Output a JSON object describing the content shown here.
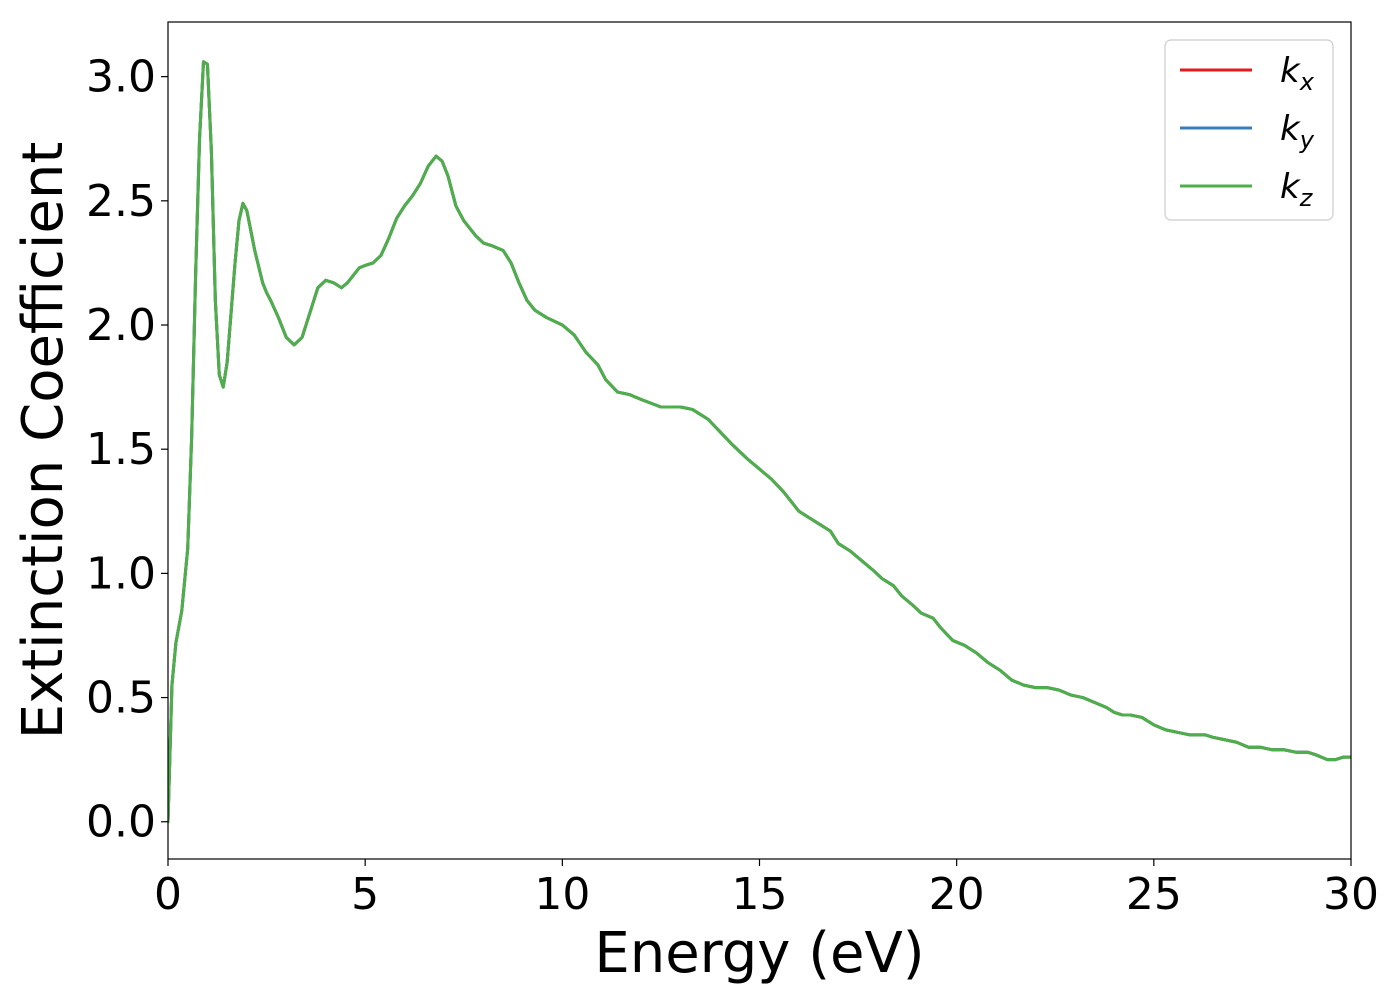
{
  "chart_data": {
    "type": "line",
    "title": "",
    "xlabel": "Energy (eV)",
    "ylabel": "Extinction Coefficient",
    "xlim": [
      0,
      30
    ],
    "ylim": [
      -0.15,
      3.22
    ],
    "xticks": [
      0,
      5,
      10,
      15,
      20,
      25,
      30
    ],
    "xtick_labels": [
      "0",
      "5",
      "10",
      "15",
      "20",
      "25",
      "30"
    ],
    "yticks": [
      0.0,
      0.5,
      1.0,
      1.5,
      2.0,
      2.5,
      3.0
    ],
    "ytick_labels": [
      "0.0",
      "0.5",
      "1.0",
      "1.5",
      "2.0",
      "2.5",
      "3.0"
    ],
    "grid": false,
    "legend_position": "top-right",
    "series": [
      {
        "name": "k_x",
        "legend_base": "k",
        "legend_sub": "x",
        "color": "#e41a1c",
        "x": [
          0,
          0.1,
          0.2,
          0.35,
          0.5,
          0.6,
          0.7,
          0.8,
          0.9,
          1.0,
          1.1,
          1.2,
          1.3,
          1.4,
          1.5,
          1.6,
          1.7,
          1.8,
          1.9,
          2.0,
          2.2,
          2.4,
          2.5,
          2.6,
          2.8,
          3.0,
          3.2,
          3.4,
          3.6,
          3.8,
          4.0,
          4.2,
          4.4,
          4.55,
          4.7,
          4.85,
          5.0,
          5.2,
          5.4,
          5.6,
          5.8,
          6.0,
          6.2,
          6.4,
          6.6,
          6.8,
          6.95,
          7.1,
          7.3,
          7.5,
          7.8,
          8.0,
          8.2,
          8.5,
          8.7,
          8.9,
          9.1,
          9.3,
          9.6,
          10.0,
          10.3,
          10.6,
          10.9,
          11.1,
          11.4,
          11.7,
          12.0,
          12.5,
          13.0,
          13.3,
          13.7,
          14.0,
          14.3,
          14.7,
          15.0,
          15.3,
          15.6,
          15.8,
          16.0,
          16.3,
          16.5,
          16.8,
          17.0,
          17.3,
          17.6,
          17.9,
          18.1,
          18.4,
          18.6,
          18.9,
          19.1,
          19.4,
          19.6,
          19.9,
          20.2,
          20.5,
          20.8,
          21.1,
          21.4,
          21.7,
          22.0,
          22.3,
          22.6,
          22.9,
          23.2,
          23.5,
          23.8,
          24.0,
          24.2,
          24.4,
          24.7,
          25.0,
          25.3,
          25.6,
          25.9,
          26.1,
          26.3,
          26.5,
          26.8,
          27.1,
          27.4,
          27.7,
          28.0,
          28.3,
          28.6,
          28.9,
          29.1,
          29.4,
          29.6,
          29.8,
          30.0
        ],
        "y": [
          0.0,
          0.55,
          0.72,
          0.85,
          1.1,
          1.55,
          2.2,
          2.75,
          3.06,
          3.05,
          2.7,
          2.1,
          1.8,
          1.75,
          1.85,
          2.05,
          2.25,
          2.42,
          2.49,
          2.46,
          2.3,
          2.17,
          2.13,
          2.1,
          2.03,
          1.95,
          1.92,
          1.95,
          2.05,
          2.15,
          2.18,
          2.17,
          2.15,
          2.17,
          2.2,
          2.23,
          2.24,
          2.25,
          2.28,
          2.35,
          2.43,
          2.48,
          2.52,
          2.57,
          2.64,
          2.68,
          2.66,
          2.6,
          2.48,
          2.42,
          2.36,
          2.33,
          2.32,
          2.3,
          2.25,
          2.17,
          2.1,
          2.06,
          2.03,
          2.0,
          1.96,
          1.89,
          1.84,
          1.78,
          1.73,
          1.72,
          1.7,
          1.67,
          1.67,
          1.66,
          1.62,
          1.57,
          1.52,
          1.46,
          1.42,
          1.38,
          1.33,
          1.29,
          1.25,
          1.22,
          1.2,
          1.17,
          1.12,
          1.09,
          1.05,
          1.01,
          0.98,
          0.95,
          0.91,
          0.87,
          0.84,
          0.82,
          0.78,
          0.73,
          0.71,
          0.68,
          0.64,
          0.61,
          0.57,
          0.55,
          0.54,
          0.54,
          0.53,
          0.51,
          0.5,
          0.48,
          0.46,
          0.44,
          0.43,
          0.43,
          0.42,
          0.39,
          0.37,
          0.36,
          0.35,
          0.35,
          0.35,
          0.34,
          0.33,
          0.32,
          0.3,
          0.3,
          0.29,
          0.29,
          0.28,
          0.28,
          0.27,
          0.25,
          0.25,
          0.26,
          0.26
        ]
      },
      {
        "name": "k_y",
        "legend_base": "k",
        "legend_sub": "y",
        "color": "#377eb8",
        "x": [
          0,
          0.1,
          0.2,
          0.35,
          0.5,
          0.6,
          0.7,
          0.8,
          0.9,
          1.0,
          1.1,
          1.2,
          1.3,
          1.4,
          1.5,
          1.6,
          1.7,
          1.8,
          1.9,
          2.0,
          2.2,
          2.4,
          2.5,
          2.6,
          2.8,
          3.0,
          3.2,
          3.4,
          3.6,
          3.8,
          4.0,
          4.2,
          4.4,
          4.55,
          4.7,
          4.85,
          5.0,
          5.2,
          5.4,
          5.6,
          5.8,
          6.0,
          6.2,
          6.4,
          6.6,
          6.8,
          6.95,
          7.1,
          7.3,
          7.5,
          7.8,
          8.0,
          8.2,
          8.5,
          8.7,
          8.9,
          9.1,
          9.3,
          9.6,
          10.0,
          10.3,
          10.6,
          10.9,
          11.1,
          11.4,
          11.7,
          12.0,
          12.5,
          13.0,
          13.3,
          13.7,
          14.0,
          14.3,
          14.7,
          15.0,
          15.3,
          15.6,
          15.8,
          16.0,
          16.3,
          16.5,
          16.8,
          17.0,
          17.3,
          17.6,
          17.9,
          18.1,
          18.4,
          18.6,
          18.9,
          19.1,
          19.4,
          19.6,
          19.9,
          20.2,
          20.5,
          20.8,
          21.1,
          21.4,
          21.7,
          22.0,
          22.3,
          22.6,
          22.9,
          23.2,
          23.5,
          23.8,
          24.0,
          24.2,
          24.4,
          24.7,
          25.0,
          25.3,
          25.6,
          25.9,
          26.1,
          26.3,
          26.5,
          26.8,
          27.1,
          27.4,
          27.7,
          28.0,
          28.3,
          28.6,
          28.9,
          29.1,
          29.4,
          29.6,
          29.8,
          30.0
        ],
        "y": [
          0.0,
          0.55,
          0.72,
          0.85,
          1.1,
          1.55,
          2.2,
          2.75,
          3.06,
          3.05,
          2.7,
          2.1,
          1.8,
          1.75,
          1.85,
          2.05,
          2.25,
          2.42,
          2.49,
          2.46,
          2.3,
          2.17,
          2.13,
          2.1,
          2.03,
          1.95,
          1.92,
          1.95,
          2.05,
          2.15,
          2.18,
          2.17,
          2.15,
          2.17,
          2.2,
          2.23,
          2.24,
          2.25,
          2.28,
          2.35,
          2.43,
          2.48,
          2.52,
          2.57,
          2.64,
          2.68,
          2.66,
          2.6,
          2.48,
          2.42,
          2.36,
          2.33,
          2.32,
          2.3,
          2.25,
          2.17,
          2.1,
          2.06,
          2.03,
          2.0,
          1.96,
          1.89,
          1.84,
          1.78,
          1.73,
          1.72,
          1.7,
          1.67,
          1.67,
          1.66,
          1.62,
          1.57,
          1.52,
          1.46,
          1.42,
          1.38,
          1.33,
          1.29,
          1.25,
          1.22,
          1.2,
          1.17,
          1.12,
          1.09,
          1.05,
          1.01,
          0.98,
          0.95,
          0.91,
          0.87,
          0.84,
          0.82,
          0.78,
          0.73,
          0.71,
          0.68,
          0.64,
          0.61,
          0.57,
          0.55,
          0.54,
          0.54,
          0.53,
          0.51,
          0.5,
          0.48,
          0.46,
          0.44,
          0.43,
          0.43,
          0.42,
          0.39,
          0.37,
          0.36,
          0.35,
          0.35,
          0.35,
          0.34,
          0.33,
          0.32,
          0.3,
          0.3,
          0.29,
          0.29,
          0.28,
          0.28,
          0.27,
          0.25,
          0.25,
          0.26,
          0.26
        ]
      },
      {
        "name": "k_z",
        "legend_base": "k",
        "legend_sub": "z",
        "color": "#4daf4a",
        "x": [
          0,
          0.1,
          0.2,
          0.35,
          0.5,
          0.6,
          0.7,
          0.8,
          0.9,
          1.0,
          1.1,
          1.2,
          1.3,
          1.4,
          1.5,
          1.6,
          1.7,
          1.8,
          1.9,
          2.0,
          2.2,
          2.4,
          2.5,
          2.6,
          2.8,
          3.0,
          3.2,
          3.4,
          3.6,
          3.8,
          4.0,
          4.2,
          4.4,
          4.55,
          4.7,
          4.85,
          5.0,
          5.2,
          5.4,
          5.6,
          5.8,
          6.0,
          6.2,
          6.4,
          6.6,
          6.8,
          6.95,
          7.1,
          7.3,
          7.5,
          7.8,
          8.0,
          8.2,
          8.5,
          8.7,
          8.9,
          9.1,
          9.3,
          9.6,
          10.0,
          10.3,
          10.6,
          10.9,
          11.1,
          11.4,
          11.7,
          12.0,
          12.5,
          13.0,
          13.3,
          13.7,
          14.0,
          14.3,
          14.7,
          15.0,
          15.3,
          15.6,
          15.8,
          16.0,
          16.3,
          16.5,
          16.8,
          17.0,
          17.3,
          17.6,
          17.9,
          18.1,
          18.4,
          18.6,
          18.9,
          19.1,
          19.4,
          19.6,
          19.9,
          20.2,
          20.5,
          20.8,
          21.1,
          21.4,
          21.7,
          22.0,
          22.3,
          22.6,
          22.9,
          23.2,
          23.5,
          23.8,
          24.0,
          24.2,
          24.4,
          24.7,
          25.0,
          25.3,
          25.6,
          25.9,
          26.1,
          26.3,
          26.5,
          26.8,
          27.1,
          27.4,
          27.7,
          28.0,
          28.3,
          28.6,
          28.9,
          29.1,
          29.4,
          29.6,
          29.8,
          30.0
        ],
        "y": [
          0.0,
          0.55,
          0.72,
          0.85,
          1.1,
          1.55,
          2.2,
          2.75,
          3.06,
          3.05,
          2.7,
          2.1,
          1.8,
          1.75,
          1.85,
          2.05,
          2.25,
          2.42,
          2.49,
          2.46,
          2.3,
          2.17,
          2.13,
          2.1,
          2.03,
          1.95,
          1.92,
          1.95,
          2.05,
          2.15,
          2.18,
          2.17,
          2.15,
          2.17,
          2.2,
          2.23,
          2.24,
          2.25,
          2.28,
          2.35,
          2.43,
          2.48,
          2.52,
          2.57,
          2.64,
          2.68,
          2.66,
          2.6,
          2.48,
          2.42,
          2.36,
          2.33,
          2.32,
          2.3,
          2.25,
          2.17,
          2.1,
          2.06,
          2.03,
          2.0,
          1.96,
          1.89,
          1.84,
          1.78,
          1.73,
          1.72,
          1.7,
          1.67,
          1.67,
          1.66,
          1.62,
          1.57,
          1.52,
          1.46,
          1.42,
          1.38,
          1.33,
          1.29,
          1.25,
          1.22,
          1.2,
          1.17,
          1.12,
          1.09,
          1.05,
          1.01,
          0.98,
          0.95,
          0.91,
          0.87,
          0.84,
          0.82,
          0.78,
          0.73,
          0.71,
          0.68,
          0.64,
          0.61,
          0.57,
          0.55,
          0.54,
          0.54,
          0.53,
          0.51,
          0.5,
          0.48,
          0.46,
          0.44,
          0.43,
          0.43,
          0.42,
          0.39,
          0.37,
          0.36,
          0.35,
          0.35,
          0.35,
          0.34,
          0.33,
          0.32,
          0.3,
          0.3,
          0.29,
          0.29,
          0.28,
          0.28,
          0.27,
          0.25,
          0.25,
          0.26,
          0.26
        ]
      }
    ]
  }
}
